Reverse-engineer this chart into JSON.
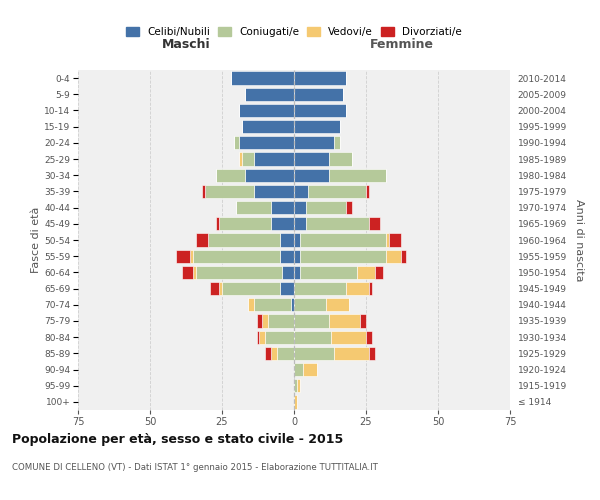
{
  "age_groups": [
    "100+",
    "95-99",
    "90-94",
    "85-89",
    "80-84",
    "75-79",
    "70-74",
    "65-69",
    "60-64",
    "55-59",
    "50-54",
    "45-49",
    "40-44",
    "35-39",
    "30-34",
    "25-29",
    "20-24",
    "15-19",
    "10-14",
    "5-9",
    "0-4"
  ],
  "birth_years": [
    "≤ 1914",
    "1915-1919",
    "1920-1924",
    "1925-1929",
    "1930-1934",
    "1935-1939",
    "1940-1944",
    "1945-1949",
    "1950-1954",
    "1955-1959",
    "1960-1964",
    "1965-1969",
    "1970-1974",
    "1975-1979",
    "1980-1984",
    "1985-1989",
    "1990-1994",
    "1995-1999",
    "2000-2004",
    "2005-2009",
    "2010-2014"
  ],
  "male": {
    "celibi": [
      0,
      0,
      0,
      0,
      0,
      0,
      1,
      5,
      4,
      5,
      5,
      8,
      8,
      14,
      17,
      14,
      19,
      18,
      19,
      17,
      22
    ],
    "coniugati": [
      0,
      0,
      0,
      6,
      10,
      9,
      13,
      20,
      30,
      30,
      25,
      18,
      12,
      17,
      10,
      4,
      2,
      0,
      0,
      0,
      0
    ],
    "vedovi": [
      0,
      0,
      0,
      2,
      2,
      2,
      2,
      1,
      1,
      1,
      0,
      0,
      0,
      0,
      0,
      1,
      0,
      0,
      0,
      0,
      0
    ],
    "divorziati": [
      0,
      0,
      0,
      2,
      1,
      2,
      0,
      3,
      4,
      5,
      4,
      1,
      0,
      1,
      0,
      0,
      0,
      0,
      0,
      0,
      0
    ]
  },
  "female": {
    "nubili": [
      0,
      0,
      0,
      0,
      0,
      0,
      0,
      0,
      2,
      2,
      2,
      4,
      4,
      5,
      12,
      12,
      14,
      16,
      18,
      17,
      18
    ],
    "coniugate": [
      0,
      1,
      3,
      14,
      13,
      12,
      11,
      18,
      20,
      30,
      30,
      22,
      14,
      20,
      20,
      8,
      2,
      0,
      0,
      0,
      0
    ],
    "vedove": [
      1,
      1,
      5,
      12,
      12,
      11,
      8,
      8,
      6,
      5,
      1,
      0,
      0,
      0,
      0,
      0,
      0,
      0,
      0,
      0,
      0
    ],
    "divorziate": [
      0,
      0,
      0,
      2,
      2,
      2,
      0,
      1,
      3,
      2,
      4,
      4,
      2,
      1,
      0,
      0,
      0,
      0,
      0,
      0,
      0
    ]
  },
  "colors": {
    "celibi": "#4472a8",
    "coniugati": "#b5c99a",
    "vedovi": "#f5c971",
    "divorziati": "#cc2222"
  },
  "xlim": 75,
  "title": "Popolazione per età, sesso e stato civile - 2015",
  "subtitle": "COMUNE DI CELLENO (VT) - Dati ISTAT 1° gennaio 2015 - Elaborazione TUTTITALIA.IT",
  "ylabel_left": "Fasce di età",
  "ylabel_right": "Anni di nascita",
  "xlabel_left": "Maschi",
  "xlabel_right": "Femmine",
  "legend_labels": [
    "Celibi/Nubili",
    "Coniugati/e",
    "Vedovi/e",
    "Divorziati/e"
  ],
  "bg_color": "#f0f0f0",
  "grid_color": "#cccccc"
}
